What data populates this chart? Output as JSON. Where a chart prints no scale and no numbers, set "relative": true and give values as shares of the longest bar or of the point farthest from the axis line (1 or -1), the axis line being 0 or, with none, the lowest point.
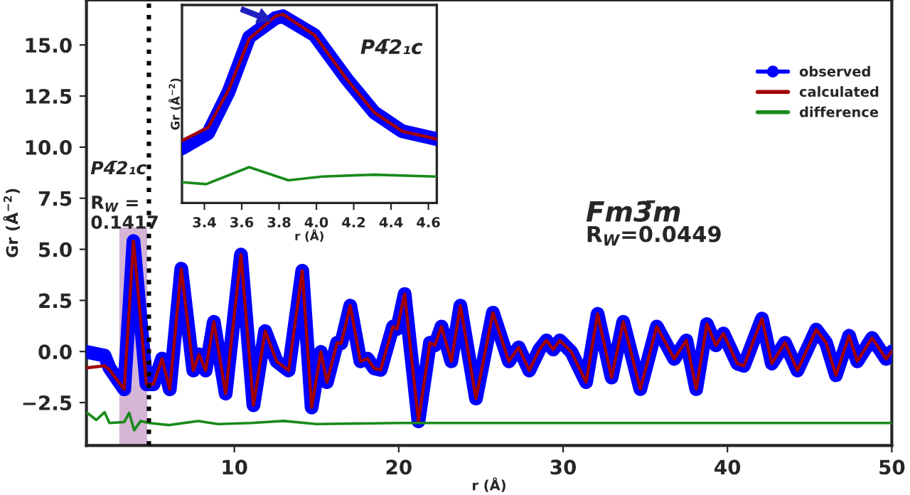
{
  "chart_data": [
    {
      "type": "line",
      "xlabel": "r (Å)",
      "ylabel": "Gr (Å$^{−2}$)",
      "xlim": [
        1,
        50
      ],
      "ylim": [
        -4.6,
        17.2
      ],
      "xticks": [
        10,
        20,
        30,
        40,
        50
      ],
      "yticks": [
        {
          "value": -2.5,
          "label": "−2.5"
        },
        {
          "value": 0,
          "label": "0.0"
        },
        2.5,
        {
          "value": 5,
          "label": "5.0"
        },
        7.5,
        {
          "value": 10,
          "label": "10.0"
        },
        12.5,
        {
          "value": 15,
          "label": "15.0"
        }
      ],
      "grid": false,
      "legend": "top right",
      "series": [
        {
          "name": "observed",
          "color": "#0000ff",
          "marker": "circle",
          "x": [
            1.0,
            2.1,
            2.4,
            3.3,
            3.86,
            4.65,
            5.08,
            5.6,
            6.07,
            6.77,
            7.5,
            7.85,
            8.25,
            8.75,
            9.47,
            10.4,
            11.16,
            11.87,
            12.57,
            13.3,
            14.13,
            14.7,
            15.26,
            15.63,
            16.25,
            16.5,
            17.05,
            17.67,
            18.1,
            18.5,
            18.9,
            19.65,
            19.9,
            20.36,
            21.2,
            21.9,
            22.2,
            22.6,
            23.2,
            23.75,
            24.7,
            25.73,
            26.7,
            27.3,
            27.94,
            28.56,
            28.99,
            29.4,
            29.8,
            30.5,
            31.4,
            32.1,
            32.95,
            33.66,
            34.7,
            35.7,
            36.76,
            37.5,
            38.1,
            38.75,
            39.3,
            39.75,
            40.6,
            41.0,
            42.1,
            42.7,
            43.5,
            44.26,
            45.4,
            46.0,
            46.6,
            47.4,
            47.9,
            48.8,
            49.65,
            50.0
          ],
          "values": [
            -0.02,
            -0.2,
            -0.8,
            -1.85,
            5.4,
            -1.6,
            -1.6,
            -0.35,
            -1.85,
            4.05,
            -0.93,
            -0.14,
            -0.93,
            1.45,
            -2.06,
            4.74,
            -2.63,
            1.0,
            -0.48,
            -0.93,
            3.95,
            -2.74,
            -0.02,
            -1.5,
            0.43,
            0.4,
            2.24,
            -0.48,
            -0.35,
            -0.82,
            -0.9,
            1.22,
            1.1,
            2.81,
            -3.42,
            0.43,
            0.3,
            1.22,
            -0.48,
            2.24,
            -2.3,
            1.9,
            -0.48,
            0.2,
            -0.93,
            0.1,
            0.54,
            0.1,
            0.54,
            -0.02,
            -1.5,
            1.84,
            -1.27,
            1.45,
            -1.84,
            1.22,
            -0.36,
            0.54,
            -1.84,
            1.34,
            0.3,
            0.88,
            -0.59,
            -0.7,
            1.61,
            -0.59,
            0.43,
            -0.93,
            1.07,
            0.43,
            -1.16,
            0.77,
            -0.48,
            0.66,
            -0.36,
            0.0
          ]
        },
        {
          "name": "calculated",
          "color": "#a00000",
          "x": [
            1.0,
            2.1,
            2.4,
            3.3,
            3.86,
            4.65,
            5.08,
            5.6,
            6.07,
            6.77,
            7.5,
            7.85,
            8.25,
            8.75,
            9.47,
            10.4,
            11.16,
            11.87,
            12.57,
            13.3,
            14.13,
            14.7,
            15.26,
            15.63,
            16.25,
            16.5,
            17.05,
            17.67,
            18.1,
            18.5,
            18.9,
            19.65,
            19.9,
            20.36,
            21.2,
            21.9,
            22.2,
            22.6,
            23.2,
            23.75,
            24.7,
            25.73,
            26.7,
            27.3,
            27.94,
            28.56,
            28.99,
            29.4,
            29.8,
            30.5,
            31.4,
            32.1,
            32.95,
            33.66,
            34.7,
            35.7,
            36.76,
            37.5,
            38.1,
            38.75,
            39.3,
            39.75,
            40.6,
            41.0,
            42.1,
            42.7,
            43.5,
            44.26,
            45.4,
            46.0,
            46.6,
            47.4,
            47.9,
            48.8,
            49.65,
            50.0
          ],
          "values": [
            -0.8,
            -0.7,
            -0.9,
            -1.85,
            5.4,
            -1.6,
            -1.6,
            -0.35,
            -1.85,
            4.05,
            -0.93,
            -0.14,
            -0.93,
            1.45,
            -2.06,
            4.74,
            -2.63,
            1.0,
            -0.48,
            -0.93,
            3.95,
            -2.74,
            -0.02,
            -1.5,
            0.43,
            0.4,
            2.24,
            -0.48,
            -0.35,
            -0.82,
            -0.9,
            1.22,
            1.1,
            2.81,
            -3.42,
            0.43,
            0.3,
            1.22,
            -0.48,
            2.24,
            -2.3,
            1.9,
            -0.48,
            0.2,
            -0.93,
            0.1,
            0.54,
            0.1,
            0.54,
            -0.02,
            -1.5,
            1.84,
            -1.27,
            1.45,
            -1.84,
            1.22,
            -0.36,
            0.54,
            -1.84,
            1.34,
            0.3,
            0.88,
            -0.59,
            -0.7,
            1.61,
            -0.59,
            0.43,
            -0.93,
            1.07,
            0.43,
            -1.16,
            0.77,
            -0.48,
            0.66,
            -0.36,
            0.0
          ]
        },
        {
          "name": "difference",
          "color": "#1a8a1a",
          "x": [
            1.0,
            1.6,
            2.1,
            2.4,
            3.3,
            3.6,
            3.9,
            4.3,
            4.8,
            6.0,
            7.8,
            9.0,
            11.0,
            13.0,
            15.0,
            20.0,
            25.0,
            30.0,
            35.0,
            40.0,
            45.0,
            50.0
          ],
          "values": [
            -2.97,
            -3.35,
            -2.97,
            -3.5,
            -3.45,
            -3.0,
            -3.85,
            -3.4,
            -3.5,
            -3.6,
            -3.4,
            -3.55,
            -3.5,
            -3.4,
            -3.55,
            -3.5,
            -3.5,
            -3.5,
            -3.5,
            -3.5,
            -3.5,
            -3.5
          ]
        }
      ],
      "ref_lines": [
        {
          "axis": "x",
          "value": 4.8,
          "color": "#000000",
          "line_style": "dotted"
        }
      ],
      "bands": [
        {
          "axis": "x",
          "from": 3.0,
          "to": 4.7,
          "color": "#c9a3cc"
        }
      ],
      "annotations": [
        "P4̄2₁c",
        "R$_{W}$ =\n0.1417",
        "Fm3̄m",
        "R$_{W}$=0.0449"
      ]
    },
    {
      "type": "line",
      "relative": true,
      "xlabel": "r (Å)",
      "ylabel": "Gr (Å$^{−2}$)",
      "xlim": [
        3.28,
        4.645
      ],
      "xticks": [
        3.4,
        3.6,
        3.8,
        {
          "value": 4,
          "label": "4.0"
        },
        4.2,
        4.4,
        4.6
      ],
      "tick_labels": "x",
      "grid": false,
      "series": [
        {
          "color": "#0000ff",
          "x": [
            3.28,
            3.42,
            3.53,
            3.64,
            3.78,
            3.82,
            3.99,
            4.16,
            4.31,
            4.46,
            4.64
          ],
          "values": [
            0.29,
            0.37,
            0.59,
            0.88,
            0.98,
            0.99,
            0.89,
            0.66,
            0.48,
            0.38,
            0.34
          ]
        },
        {
          "color": "#a00000",
          "x": [
            3.28,
            3.42,
            3.53,
            3.64,
            3.78,
            3.82,
            3.99,
            4.16,
            4.31,
            4.46,
            4.64
          ],
          "values": [
            0.33,
            0.4,
            0.6,
            0.87,
            0.99,
            1.0,
            0.89,
            0.66,
            0.48,
            0.38,
            0.34
          ]
        },
        {
          "color": "#1a8a1a",
          "x": [
            3.28,
            3.41,
            3.64,
            3.85,
            4.03,
            4.31,
            4.64
          ],
          "values": [
            0.11,
            0.1,
            0.19,
            0.12,
            0.14,
            0.15,
            0.14
          ]
        }
      ],
      "annotations": [
        "P4̄2₁c"
      ]
    }
  ]
}
